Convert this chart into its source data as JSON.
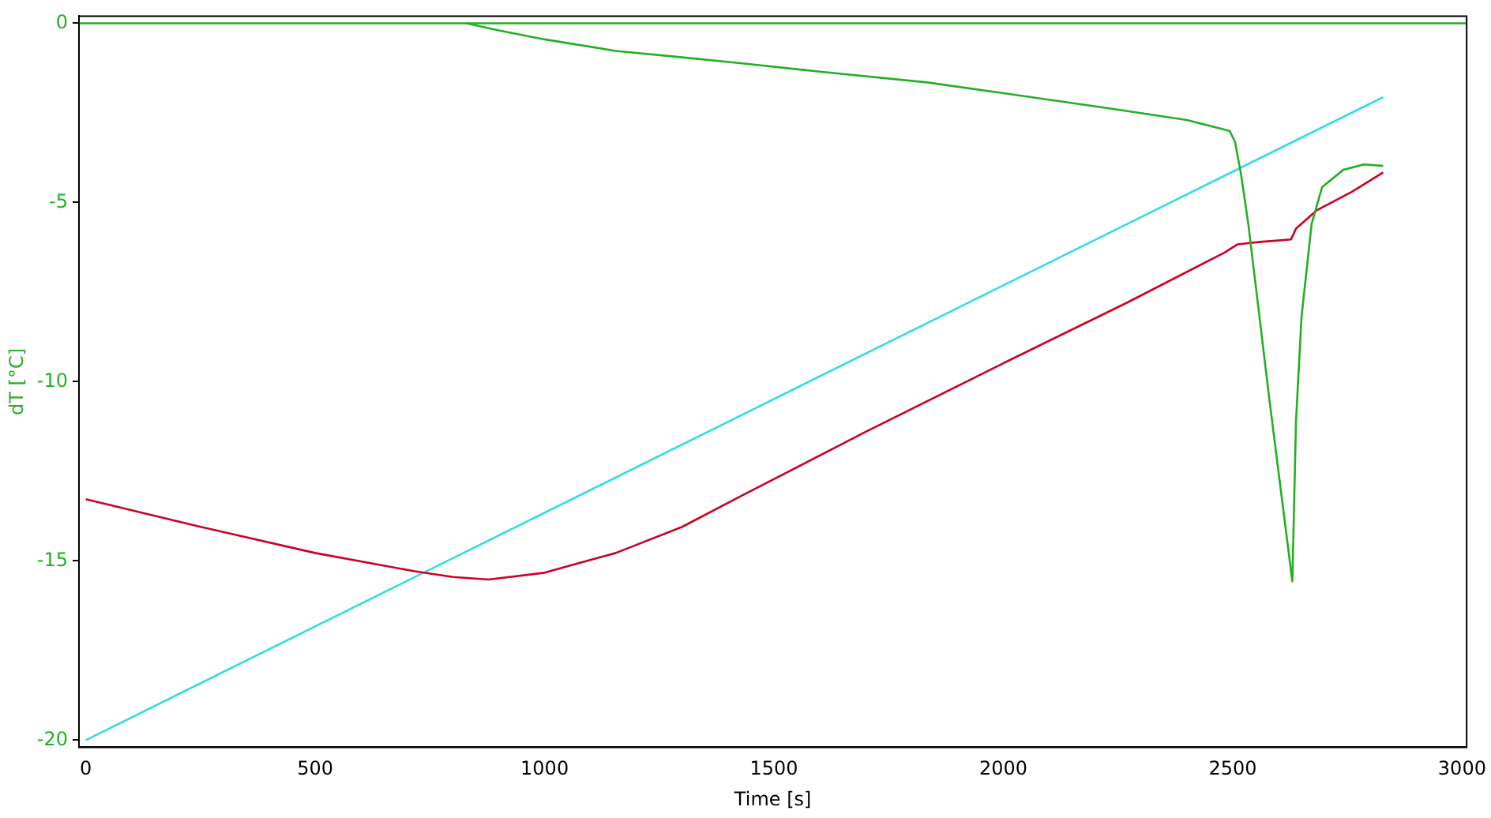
{
  "chart_data": {
    "type": "line",
    "xlabel": "Time [s]",
    "ylabel": "dT [°C]",
    "xlim": [
      -15,
      3010
    ],
    "ylim": [
      -20.2,
      0.2
    ],
    "xticks": [
      0,
      500,
      1000,
      1500,
      2000,
      2500,
      3000
    ],
    "yticks": [
      -20,
      -15,
      -10,
      -5,
      0
    ],
    "grid": false,
    "legend": false,
    "marker": "none",
    "line_style": "solid",
    "ref_lines": [
      {
        "axis": "y",
        "value": 0,
        "color": "#22b022"
      }
    ],
    "series": [
      {
        "color": "#22b022",
        "x": [
          830,
          900,
          1000,
          1155,
          1300,
          1431,
          1600,
          1834,
          2000,
          2234,
          2400,
          2493,
          2505,
          2518,
          2534,
          2580,
          2630,
          2638,
          2650,
          2672,
          2695,
          2741,
          2786,
          2828
        ],
        "values": [
          0,
          -0.2,
          -0.45,
          -0.77,
          -0.95,
          -1.12,
          -1.35,
          -1.65,
          -1.95,
          -2.38,
          -2.7,
          -3.0,
          -3.3,
          -4.2,
          -5.6,
          -10.5,
          -15.57,
          -11.1,
          -8.2,
          -5.6,
          -4.57,
          -4.09,
          -3.94,
          -3.98
        ]
      },
      {
        "color": "#cc0022",
        "x": [
          0,
          250,
          500,
          717,
          800,
          878,
          1000,
          1155,
          1300,
          1431,
          1700,
          1993,
          2269,
          2483,
          2510,
          2560,
          2627,
          2638,
          2683,
          2760,
          2828
        ],
        "values": [
          -13.28,
          -14.05,
          -14.78,
          -15.29,
          -15.45,
          -15.52,
          -15.33,
          -14.78,
          -14.05,
          -13.17,
          -11.4,
          -9.53,
          -7.8,
          -6.39,
          -6.17,
          -6.1,
          -6.03,
          -5.73,
          -5.22,
          -4.7,
          -4.16
        ]
      },
      {
        "color": "#33dddd",
        "x": [
          0,
          2828
        ],
        "values": [
          -20,
          -2.06
        ]
      }
    ]
  }
}
